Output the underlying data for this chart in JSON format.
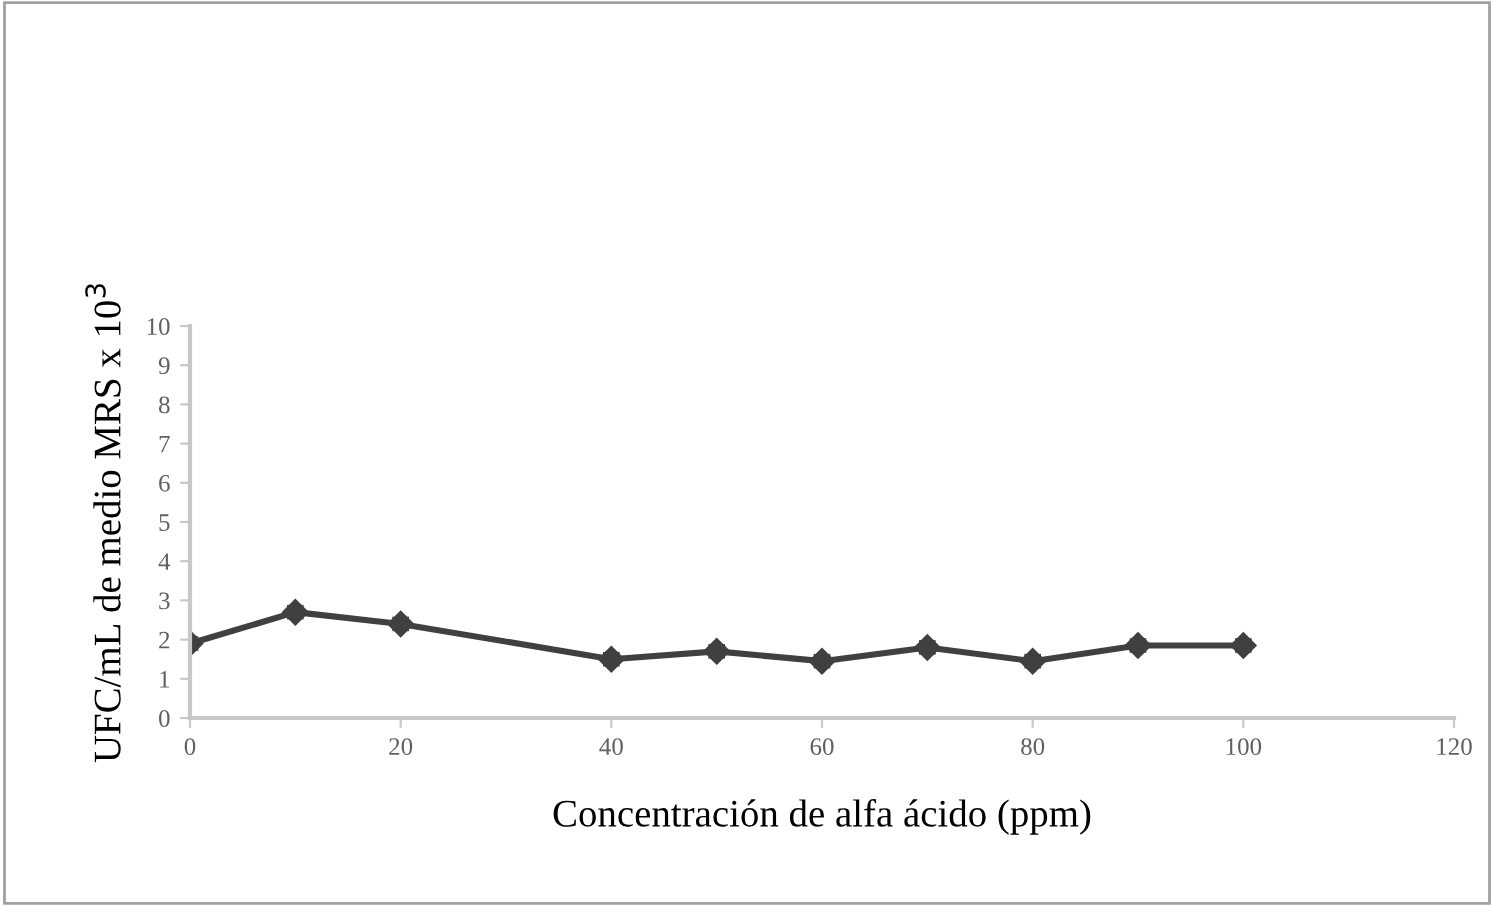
{
  "chart_data": {
    "type": "line",
    "xlabel": "Concentración de alfa ácido (ppm)",
    "ylabel": "UFC/mL de medio MRS x 10$^{3}$",
    "x": [
      0,
      10,
      20,
      40,
      50,
      60,
      70,
      80,
      90,
      100
    ],
    "series": [
      {
        "color": "#404040",
        "values": [
          1.9,
          2.7,
          2.4,
          1.5,
          1.7,
          1.45,
          1.8,
          1.45,
          1.85,
          1.85
        ],
        "errors": [
          0.15,
          0.15,
          0.15,
          0.15,
          0.15,
          0.15,
          0.15,
          0.15,
          0.15,
          0.15
        ]
      }
    ],
    "xlim": [
      0,
      120
    ],
    "xticks": [
      0,
      20,
      40,
      60,
      80,
      100,
      120
    ],
    "ylim": [
      0,
      10
    ],
    "yticks": [
      0,
      1,
      2,
      3,
      4,
      5,
      6,
      7,
      8,
      9,
      10
    ],
    "marker": "diamond",
    "line_style": "solid",
    "grid": false,
    "legend": false
  }
}
